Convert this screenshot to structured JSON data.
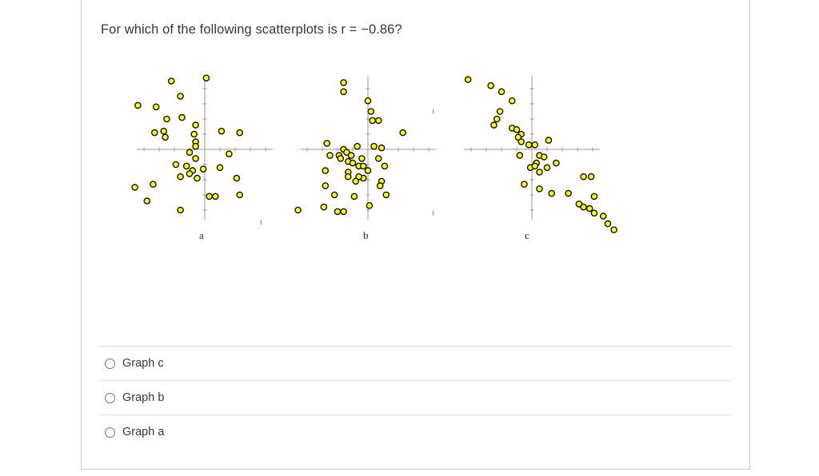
{
  "question": {
    "text": "For which of the following scatterplots is r = −0.86?"
  },
  "plots": [
    {
      "label": "a",
      "points": [
        [
          -2.2,
          4.5
        ],
        [
          0.1,
          4.7
        ],
        [
          -1.6,
          3.5
        ],
        [
          -4.4,
          2.9
        ],
        [
          -3.2,
          2.8
        ],
        [
          -2.5,
          2.0
        ],
        [
          -1.5,
          2.1
        ],
        [
          -3.3,
          1.1
        ],
        [
          -2.7,
          1.2
        ],
        [
          -2.6,
          0.8
        ],
        [
          -0.6,
          1.6
        ],
        [
          -0.7,
          1.0
        ],
        [
          -0.6,
          0.5
        ],
        [
          1.1,
          1.2
        ],
        [
          2.3,
          1.1
        ],
        [
          -0.6,
          0.2
        ],
        [
          -1.0,
          -0.2
        ],
        [
          -0.6,
          -0.6
        ],
        [
          1.6,
          -0.3
        ],
        [
          -1.9,
          -1.0
        ],
        [
          -1.2,
          -1.1
        ],
        [
          -0.8,
          -1.4
        ],
        [
          -0.1,
          -1.3
        ],
        [
          1.0,
          -1.2
        ],
        [
          -1.6,
          -1.8
        ],
        [
          -1.0,
          -1.6
        ],
        [
          -0.5,
          -1.9
        ],
        [
          2.1,
          -1.9
        ],
        [
          -4.6,
          -2.5
        ],
        [
          -3.4,
          -2.3
        ],
        [
          0.3,
          -3.1
        ],
        [
          0.7,
          -3.1
        ],
        [
          2.3,
          -3.0
        ],
        [
          -3.8,
          -3.4
        ],
        [
          -1.6,
          -4.0
        ]
      ],
      "tick_marks": [
        [
          3.7,
          -4.8
        ]
      ]
    },
    {
      "label": "b",
      "points": [
        [
          -1.6,
          4.4
        ],
        [
          -1.6,
          3.8
        ],
        [
          0.0,
          3.2
        ],
        [
          0.2,
          2.5
        ],
        [
          0.3,
          1.9
        ],
        [
          0.7,
          1.9
        ],
        [
          2.3,
          1.1
        ],
        [
          -2.7,
          0.4
        ],
        [
          -1.6,
          0.0
        ],
        [
          -0.7,
          0.2
        ],
        [
          0.4,
          0.2
        ],
        [
          0.9,
          0.1
        ],
        [
          -2.5,
          -0.4
        ],
        [
          -1.9,
          -0.4
        ],
        [
          -1.4,
          -0.2
        ],
        [
          -1.1,
          -0.4
        ],
        [
          -0.4,
          -0.6
        ],
        [
          0.7,
          -0.6
        ],
        [
          -1.3,
          -0.8
        ],
        [
          -1.0,
          -0.9
        ],
        [
          -1.8,
          -0.6
        ],
        [
          -0.6,
          -1.1
        ],
        [
          -0.3,
          -1.1
        ],
        [
          1.1,
          -1.1
        ],
        [
          -2.8,
          -1.4
        ],
        [
          -1.3,
          -1.5
        ],
        [
          0.0,
          -1.4
        ],
        [
          -1.3,
          -1.8
        ],
        [
          -0.3,
          -1.9
        ],
        [
          -0.6,
          -1.8
        ],
        [
          -0.8,
          -2.1
        ],
        [
          0.9,
          -2.1
        ],
        [
          0.8,
          -2.4
        ],
        [
          -2.8,
          -2.4
        ],
        [
          -2.2,
          -3.0
        ],
        [
          -0.9,
          -3.1
        ],
        [
          1.2,
          -3.0
        ],
        [
          -2.9,
          -3.8
        ],
        [
          -2.0,
          -4.1
        ],
        [
          -1.6,
          -4.1
        ],
        [
          0.1,
          -3.7
        ],
        [
          -4.6,
          -4.0
        ]
      ],
      "tick_marks": [
        [
          4.3,
          2.5
        ],
        [
          4.3,
          -4.2
        ]
      ]
    },
    {
      "label": "c",
      "points": [
        [
          -4.2,
          4.6
        ],
        [
          -2.7,
          4.2
        ],
        [
          -2.0,
          3.8
        ],
        [
          -1.3,
          3.2
        ],
        [
          -2.1,
          2.5
        ],
        [
          -2.3,
          2.0
        ],
        [
          -2.5,
          1.6
        ],
        [
          -1.3,
          1.4
        ],
        [
          -1.0,
          1.3
        ],
        [
          -0.7,
          1.0
        ],
        [
          -0.9,
          0.8
        ],
        [
          -0.7,
          0.5
        ],
        [
          -0.2,
          0.3
        ],
        [
          0.2,
          0.3
        ],
        [
          1.1,
          0.6
        ],
        [
          -0.8,
          -0.4
        ],
        [
          0.5,
          -0.4
        ],
        [
          0.8,
          -0.5
        ],
        [
          0.3,
          -0.9
        ],
        [
          -0.1,
          -1.2
        ],
        [
          0.2,
          -1.1
        ],
        [
          1.0,
          -1.2
        ],
        [
          1.6,
          -0.9
        ],
        [
          0.5,
          -1.5
        ],
        [
          3.4,
          -1.8
        ],
        [
          3.9,
          -1.8
        ],
        [
          -0.5,
          -2.3
        ],
        [
          0.5,
          -2.6
        ],
        [
          1.3,
          -2.9
        ],
        [
          2.4,
          -2.9
        ],
        [
          4.1,
          -3.1
        ],
        [
          3.1,
          -3.6
        ],
        [
          3.4,
          -3.8
        ],
        [
          3.8,
          -3.9
        ],
        [
          4.1,
          -4.2
        ],
        [
          4.7,
          -4.4
        ],
        [
          5.0,
          -4.9
        ],
        [
          5.4,
          -5.3
        ]
      ],
      "tick_marks": []
    }
  ],
  "answers": [
    {
      "label": "Graph c"
    },
    {
      "label": "Graph b"
    },
    {
      "label": "Graph a"
    }
  ],
  "colors": {
    "point_fill": "#ffff00",
    "point_stroke": "#111111",
    "axis": "#999999"
  }
}
